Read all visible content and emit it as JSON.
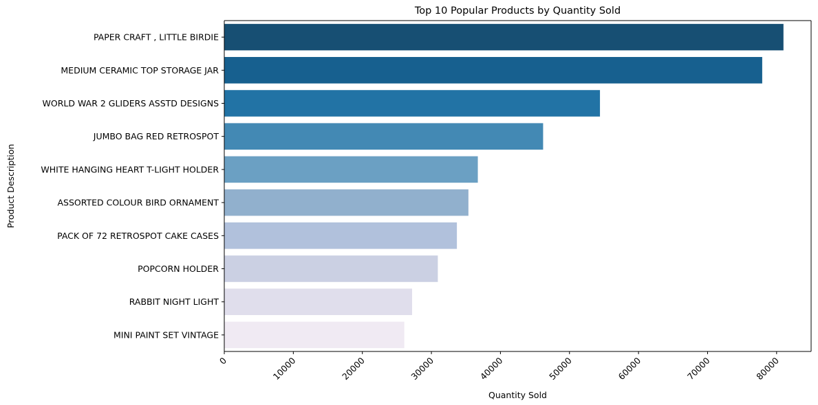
{
  "chart_data": {
    "type": "bar",
    "orientation": "horizontal",
    "title": "Top 10 Popular Products by Quantity Sold",
    "xlabel": "Quantity Sold",
    "ylabel": "Product Description",
    "xlim": [
      0,
      85000
    ],
    "xticks": [
      0,
      10000,
      20000,
      30000,
      40000,
      50000,
      60000,
      70000,
      80000
    ],
    "xtick_rotation": 45,
    "grid": false,
    "categories": [
      "PAPER CRAFT , LITTLE BIRDIE",
      "MEDIUM CERAMIC TOP STORAGE JAR",
      "WORLD WAR 2 GLIDERS ASSTD DESIGNS",
      "JUMBO BAG RED RETROSPOT",
      "WHITE HANGING HEART T-LIGHT HOLDER",
      "ASSORTED COLOUR BIRD ORNAMENT",
      "PACK OF 72 RETROSPOT CAKE CASES",
      "POPCORN HOLDER",
      "RABBIT NIGHT LIGHT",
      "MINI PAINT SET VINTAGE "
    ],
    "values": [
      80995,
      77916,
      54415,
      46181,
      36725,
      35362,
      33693,
      30931,
      27202,
      26076
    ],
    "colors": [
      "#174f73",
      "#17608f",
      "#2273a5",
      "#4389b4",
      "#6ba0c3",
      "#91b0cd",
      "#b1c1dc",
      "#cbd0e3",
      "#e0deec",
      "#f0eaf3"
    ]
  }
}
